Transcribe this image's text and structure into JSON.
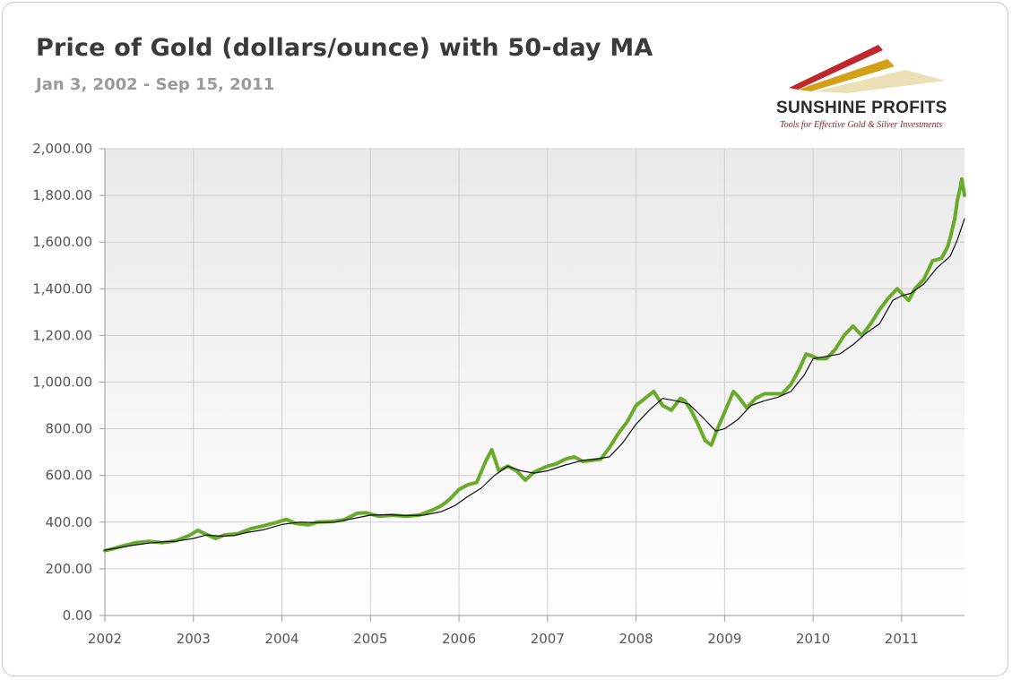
{
  "header": {
    "title": "Price of Gold (dollars/ounce) with 50-day MA",
    "subtitle": "Jan 3, 2002 - Sep 15, 2011"
  },
  "logo": {
    "name": "SUNSHINE PROFITS",
    "tagline": "Tools for Effective Gold & Silver Investments",
    "colors": [
      "#c0272d",
      "#d4a017",
      "#e8d9a8"
    ]
  },
  "chart_data": {
    "type": "line",
    "title": "Price of Gold (dollars/ounce) with 50-day MA",
    "subtitle": "Jan 3, 2002 - Sep 15, 2011",
    "xlabel": "",
    "ylabel": "",
    "xlim": [
      2002.0,
      2011.71
    ],
    "ylim": [
      0,
      2000
    ],
    "grid": true,
    "legend": "none",
    "x_ticks": [
      "2002",
      "2003",
      "2004",
      "2005",
      "2006",
      "2007",
      "2008",
      "2009",
      "2010",
      "2011"
    ],
    "y_ticks": [
      "0.00",
      "200.00",
      "400.00",
      "600.00",
      "800.00",
      "1,000.00",
      "1,200.00",
      "1,400.00",
      "1,600.00",
      "1,800.00",
      "2,000.00"
    ],
    "series": [
      {
        "color": "#6aaa2a",
        "x": [
          2002.0,
          2002.08,
          2002.2,
          2002.35,
          2002.5,
          2002.65,
          2002.8,
          2002.95,
          2003.05,
          2003.12,
          2003.25,
          2003.35,
          2003.5,
          2003.65,
          2003.8,
          2003.95,
          2004.05,
          2004.15,
          2004.3,
          2004.4,
          2004.55,
          2004.7,
          2004.85,
          2004.95,
          2005.1,
          2005.25,
          2005.4,
          2005.55,
          2005.7,
          2005.8,
          2005.9,
          2006.0,
          2006.1,
          2006.2,
          2006.3,
          2006.37,
          2006.45,
          2006.55,
          2006.65,
          2006.75,
          2006.85,
          2007.0,
          2007.1,
          2007.2,
          2007.3,
          2007.4,
          2007.5,
          2007.6,
          2007.7,
          2007.8,
          2007.9,
          2008.0,
          2008.1,
          2008.2,
          2008.3,
          2008.4,
          2008.5,
          2008.55,
          2008.62,
          2008.7,
          2008.78,
          2008.85,
          2008.92,
          2009.0,
          2009.1,
          2009.15,
          2009.25,
          2009.35,
          2009.45,
          2009.55,
          2009.65,
          2009.75,
          2009.85,
          2009.92,
          2010.0,
          2010.05,
          2010.15,
          2010.25,
          2010.35,
          2010.45,
          2010.55,
          2010.65,
          2010.75,
          2010.85,
          2010.95,
          2011.0,
          2011.08,
          2011.15,
          2011.25,
          2011.35,
          2011.45,
          2011.52,
          2011.55,
          2011.6,
          2011.63,
          2011.66,
          2011.68,
          2011.71
        ],
        "y": [
          278,
          285,
          298,
          312,
          318,
          312,
          320,
          342,
          365,
          352,
          330,
          345,
          350,
          372,
          385,
          400,
          412,
          395,
          388,
          400,
          402,
          410,
          438,
          440,
          425,
          430,
          425,
          430,
          452,
          470,
          500,
          540,
          560,
          570,
          660,
          710,
          620,
          640,
          620,
          580,
          615,
          640,
          650,
          670,
          680,
          660,
          665,
          670,
          720,
          780,
          830,
          900,
          930,
          960,
          900,
          880,
          930,
          920,
          880,
          820,
          750,
          730,
          800,
          870,
          960,
          940,
          890,
          930,
          950,
          950,
          950,
          990,
          1060,
          1120,
          1110,
          1100,
          1100,
          1140,
          1200,
          1240,
          1200,
          1250,
          1310,
          1360,
          1400,
          1380,
          1350,
          1400,
          1440,
          1520,
          1530,
          1580,
          1620,
          1700,
          1780,
          1830,
          1870,
          1800
        ]
      },
      {
        "color": "#111111",
        "x": [
          2002.0,
          2002.15,
          2002.3,
          2002.5,
          2002.65,
          2002.8,
          2003.0,
          2003.15,
          2003.3,
          2003.45,
          2003.6,
          2003.8,
          2004.0,
          2004.2,
          2004.4,
          2004.6,
          2004.8,
          2005.0,
          2005.2,
          2005.4,
          2005.6,
          2005.8,
          2005.95,
          2006.1,
          2006.25,
          2006.4,
          2006.55,
          2006.7,
          2006.85,
          2007.0,
          2007.2,
          2007.4,
          2007.55,
          2007.7,
          2007.85,
          2008.0,
          2008.15,
          2008.3,
          2008.45,
          2008.6,
          2008.75,
          2008.9,
          2009.0,
          2009.15,
          2009.3,
          2009.45,
          2009.6,
          2009.75,
          2009.9,
          2010.0,
          2010.15,
          2010.3,
          2010.45,
          2010.6,
          2010.75,
          2010.9,
          2011.0,
          2011.1,
          2011.25,
          2011.4,
          2011.55,
          2011.63,
          2011.71
        ],
        "y": [
          280,
          290,
          300,
          310,
          315,
          318,
          330,
          345,
          340,
          342,
          355,
          368,
          390,
          400,
          398,
          400,
          415,
          430,
          432,
          428,
          430,
          445,
          470,
          510,
          545,
          600,
          640,
          620,
          610,
          620,
          645,
          665,
          670,
          680,
          740,
          820,
          880,
          930,
          920,
          905,
          850,
          790,
          800,
          840,
          900,
          920,
          935,
          960,
          1030,
          1100,
          1110,
          1120,
          1160,
          1210,
          1250,
          1350,
          1370,
          1380,
          1420,
          1490,
          1540,
          1610,
          1700
        ]
      }
    ]
  }
}
